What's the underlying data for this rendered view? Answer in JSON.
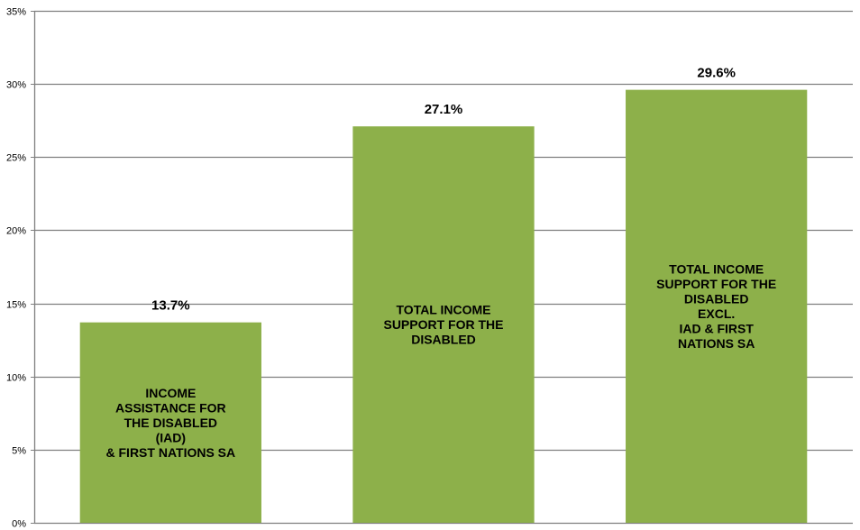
{
  "chart_data": {
    "type": "bar",
    "categories": [
      "INCOME ASSISTANCE FOR THE DISABLED (IAD) & FIRST NATIONS SA",
      "TOTAL INCOME SUPPORT FOR THE DISABLED",
      "TOTAL INCOME SUPPORT FOR THE DISABLED EXCL. IAD & FIRST NATIONS SA"
    ],
    "values": [
      13.7,
      27.1,
      29.6
    ],
    "value_labels": [
      "13.7%",
      "27.1%",
      "29.6%"
    ],
    "bar_label_lines": [
      [
        "INCOME",
        "ASSISTANCE FOR",
        "THE DISABLED",
        "(IAD)",
        "& FIRST NATIONS SA"
      ],
      [
        "TOTAL INCOME",
        "SUPPORT FOR THE",
        "DISABLED"
      ],
      [
        "TOTAL INCOME",
        "SUPPORT FOR THE",
        "DISABLED",
        "EXCL.",
        "IAD & FIRST",
        "NATIONS SA"
      ]
    ],
    "yticks": [
      0,
      5,
      10,
      15,
      20,
      25,
      30,
      35
    ],
    "ytick_labels": [
      "0%",
      "5%",
      "10%",
      "15%",
      "20%",
      "25%",
      "30%",
      "35%"
    ],
    "ylim": [
      0,
      35
    ],
    "title": "",
    "xlabel": "",
    "ylabel": "",
    "grid": true,
    "legend": "none",
    "colors": {
      "bar": "#8DB04A",
      "grid": "#7F7F7F",
      "axis": "#7F7F7F"
    }
  }
}
